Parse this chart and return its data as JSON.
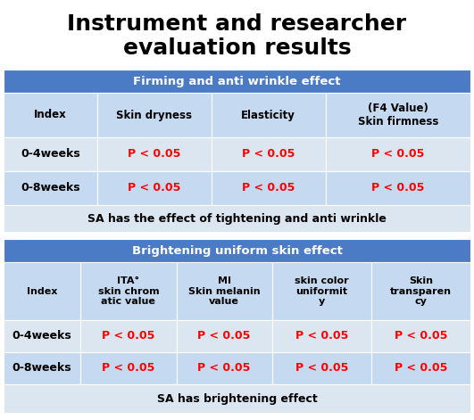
{
  "title": "Instrument and researcher\nevaluation results",
  "title_fontsize": 18,
  "title_fontweight": "bold",
  "table1_header_text": "Firming and anti wrinkle effect",
  "table1_header_bg": "#4A7BC4",
  "table1_header_color": "white",
  "table1_col_headers": [
    "Index",
    "Skin dryness",
    "Elasticity",
    "(F4 Value)\nSkin firmness"
  ],
  "table1_col_header_bg": "#C5D9F1",
  "table1_col_header_color": "black",
  "table1_rows": [
    [
      "0-4weeks",
      "P < 0.05",
      "P < 0.05",
      "P < 0.05"
    ],
    [
      "0-8weeks",
      "P < 0.05",
      "P < 0.05",
      "P < 0.05"
    ]
  ],
  "table1_row_bg_even": "#DCE6F1",
  "table1_row_bg_odd": "#C5D9F1",
  "table1_p_color": "#FF0000",
  "table1_index_color": "black",
  "table1_footer": "SA has the effect of tightening and anti wrinkle",
  "table1_footer_bg": "#DCE6F1",
  "table1_footer_color": "black",
  "table1_footer_fontweight": "bold",
  "table2_header_text": "Brightening uniform skin effect",
  "table2_header_bg": "#4A7BC4",
  "table2_header_color": "white",
  "table2_col_headers": [
    "Index",
    "ITA°\nskin chrom\natic value",
    "MI\nSkin melanin\nvalue",
    "skin color\nuniformit\ny",
    "Skin\ntransparen\ncy"
  ],
  "table2_col_header_bg": "#C5D9F1",
  "table2_col_header_color": "black",
  "table2_rows": [
    [
      "0-4weeks",
      "P < 0.05",
      "P < 0.05",
      "P < 0.05",
      "P < 0.05"
    ],
    [
      "0-8weeks",
      "P < 0.05",
      "P < 0.05",
      "P < 0.05",
      "P < 0.05"
    ]
  ],
  "table2_row_bg_even": "#DCE6F1",
  "table2_row_bg_odd": "#C5D9F1",
  "table2_p_color": "#FF0000",
  "table2_index_color": "black",
  "table2_footer": "SA has brightening effect",
  "table2_footer_bg": "#DCE6F1",
  "table2_footer_color": "black",
  "table2_footer_fontweight": "bold",
  "bg_color": "white",
  "fig_width": 5.31,
  "fig_height": 4.71,
  "dpi": 100
}
